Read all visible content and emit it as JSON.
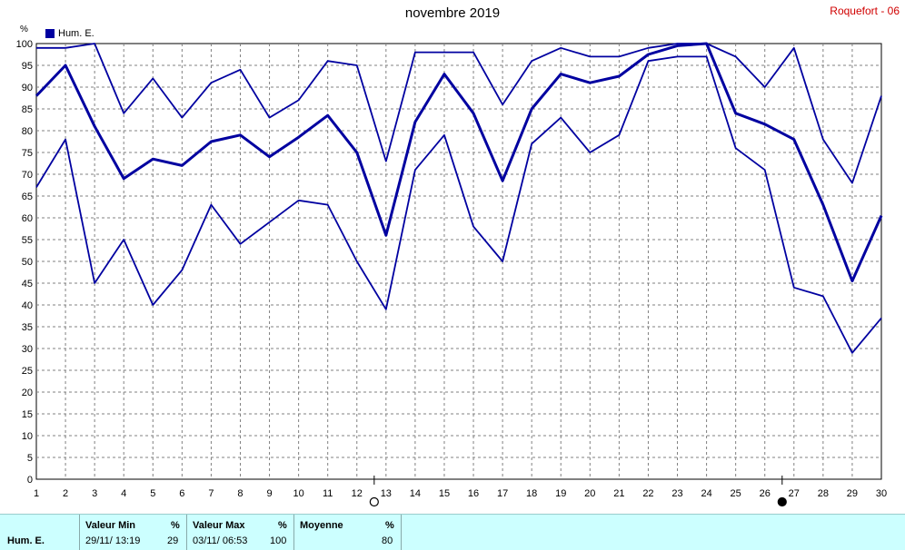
{
  "header": {
    "title": "novembre 2019",
    "station": "Roquefort - 06",
    "unit": "%"
  },
  "colors": {
    "line": "#0000a0",
    "grid": "#808080",
    "stats_bg": "#ccffff",
    "station": "#d00000"
  },
  "chart_data": {
    "type": "line",
    "title": "novembre 2019",
    "x": [
      1,
      2,
      3,
      4,
      5,
      6,
      7,
      8,
      9,
      10,
      11,
      12,
      13,
      14,
      15,
      16,
      17,
      18,
      19,
      20,
      21,
      22,
      23,
      24,
      25,
      26,
      27,
      28,
      29,
      30
    ],
    "ylim": [
      0,
      100
    ],
    "yticks": [
      0,
      5,
      10,
      15,
      20,
      25,
      30,
      35,
      40,
      45,
      50,
      55,
      60,
      65,
      70,
      75,
      80,
      85,
      90,
      95,
      100
    ],
    "grid": true,
    "legend": {
      "label": "Hum. E.",
      "position": "top-left"
    },
    "series": [
      {
        "name": "Hum. E.",
        "role": "max",
        "values": [
          99,
          99,
          100,
          84,
          92,
          83,
          91,
          94,
          83,
          87,
          96,
          95,
          73,
          98,
          98,
          98,
          86,
          96,
          99,
          97,
          97,
          99,
          100,
          100,
          97,
          90,
          99,
          78,
          68,
          88
        ]
      },
      {
        "name": "Hum. E.",
        "role": "mean",
        "values": [
          88,
          95,
          81,
          69,
          73.5,
          72,
          77.5,
          79,
          74,
          78.5,
          83.5,
          75,
          56,
          82,
          93,
          84,
          68.5,
          85,
          93,
          91,
          92.5,
          97.5,
          99.5,
          100,
          84,
          81.5,
          78,
          63,
          45.5,
          60.5
        ]
      },
      {
        "name": "Hum. E.",
        "role": "min",
        "values": [
          67,
          78,
          45,
          55,
          40,
          48,
          63,
          54,
          59,
          64,
          63,
          50,
          39,
          71,
          79,
          58,
          50,
          77,
          83,
          75,
          79,
          96,
          97,
          97,
          76,
          71,
          44,
          42,
          29,
          37
        ]
      }
    ],
    "markers": [
      {
        "x": 13,
        "symbol": "new-moon-outline"
      },
      {
        "x": 27,
        "symbol": "full-moon-filled"
      }
    ]
  },
  "stats": {
    "label": "Hum. E.",
    "min": {
      "header": "Valeur Min",
      "unit": "%",
      "datetime": "29/11/  13:19",
      "value": "29"
    },
    "max": {
      "header": "Valeur Max",
      "unit": "%",
      "datetime": "03/11/  06:53",
      "value": "100"
    },
    "mean": {
      "header": "Moyenne",
      "unit": "%",
      "value": "80"
    }
  }
}
